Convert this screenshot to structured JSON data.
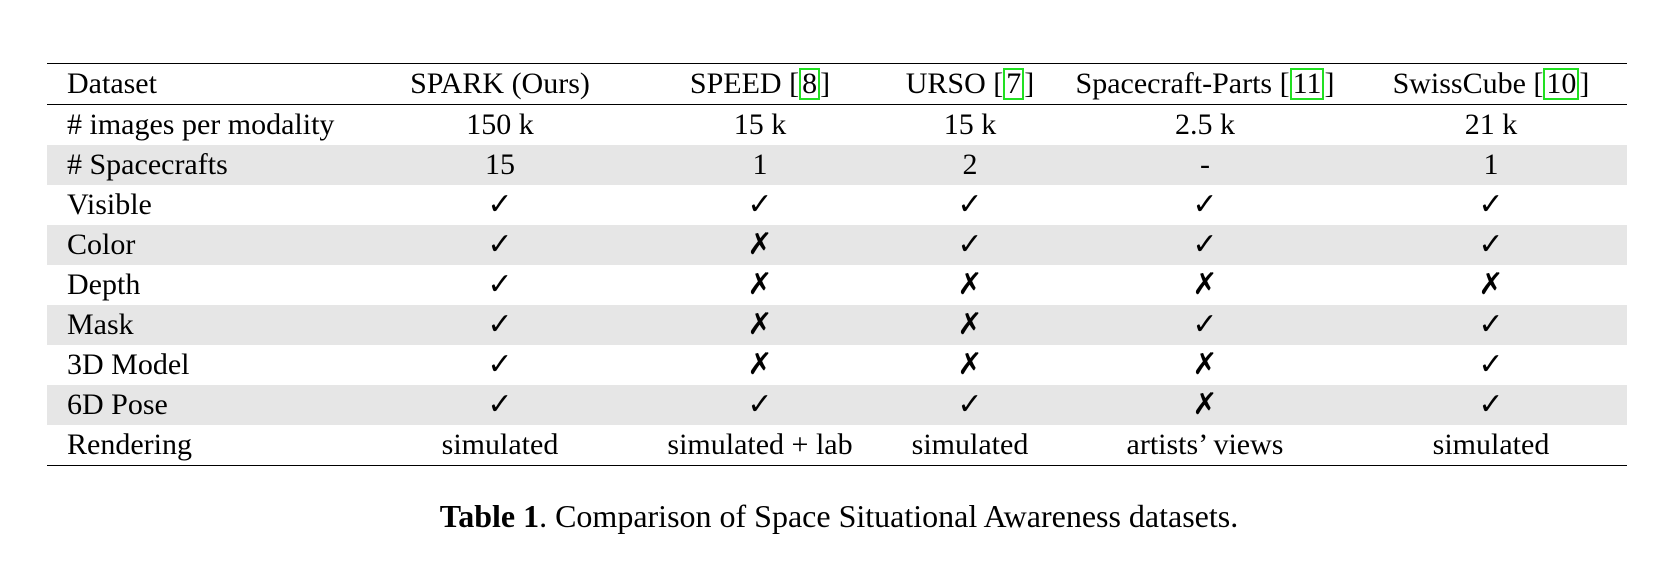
{
  "table": {
    "header": [
      {
        "text": "Dataset",
        "ref": ""
      },
      {
        "text": "SPARK (Ours)",
        "ref": ""
      },
      {
        "text": "SPEED [",
        "ref": "8",
        "close": "]"
      },
      {
        "text": "URSO [",
        "ref": "7",
        "close": "]"
      },
      {
        "text": "Spacecraft-Parts [",
        "ref": "11",
        "close": "]"
      },
      {
        "text": "SwissCube [",
        "ref": "10",
        "close": "]"
      }
    ],
    "rows": [
      {
        "label": "# images per modality",
        "cells": [
          "150 k",
          "15 k",
          "15 k",
          "2.5 k",
          "21 k"
        ],
        "bold_first": true,
        "shaded": false
      },
      {
        "label": "# Spacecrafts",
        "cells": [
          "15",
          "1",
          "2",
          "-",
          "1"
        ],
        "bold_first": true,
        "shaded": true
      },
      {
        "label": "Visible",
        "cells": [
          "✓",
          "✓",
          "✓",
          "✓",
          "✓"
        ],
        "marks": true,
        "shaded": false
      },
      {
        "label": "Color",
        "cells": [
          "✓",
          "✗",
          "✓",
          "✓",
          "✓"
        ],
        "marks": true,
        "shaded": true
      },
      {
        "label": "Depth",
        "cells": [
          "✓",
          "✗",
          "✗",
          "✗",
          "✗"
        ],
        "marks": true,
        "shaded": false
      },
      {
        "label": "Mask",
        "cells": [
          "✓",
          "✗",
          "✗",
          "✓",
          "✓"
        ],
        "marks": true,
        "shaded": true
      },
      {
        "label": "3D Model",
        "cells": [
          "✓",
          "✗",
          "✗",
          "✗",
          "✓"
        ],
        "marks": true,
        "shaded": false
      },
      {
        "label": "6D Pose",
        "cells": [
          "✓",
          "✓",
          "✓",
          "✗",
          "✓"
        ],
        "marks": true,
        "shaded": true
      },
      {
        "label": "Rendering",
        "cells": [
          "simulated",
          "simulated + lab",
          "simulated",
          "artists’ views",
          "simulated"
        ],
        "bold_first": true,
        "shaded": false
      }
    ]
  },
  "caption": {
    "label": "Table 1",
    "text": ". Comparison of Space Situational Awareness datasets."
  },
  "colors": {
    "shade": "#e6e6e6",
    "ref_border": "#22e022"
  }
}
